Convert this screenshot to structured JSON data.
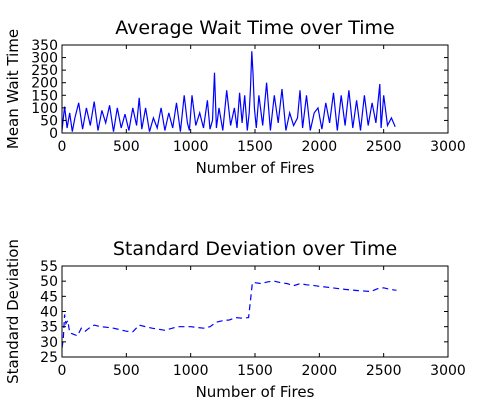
{
  "colors": {
    "series": "#0000ff",
    "axis": "#000000",
    "background": "#ffffff"
  },
  "chart_data": [
    {
      "type": "line",
      "title": "Average Wait Time over Time",
      "xlabel": "Number of Fires",
      "ylabel": "Mean Wait Time",
      "xlim": [
        0,
        3000
      ],
      "ylim": [
        0,
        350
      ],
      "xticks": [
        0,
        500,
        1000,
        1500,
        2000,
        2500,
        3000
      ],
      "yticks": [
        0,
        50,
        100,
        150,
        200,
        250,
        300,
        350
      ],
      "grid": false,
      "line_style": "solid",
      "series": [
        {
          "x": [
            0,
            20,
            40,
            60,
            80,
            100,
            130,
            160,
            190,
            220,
            250,
            280,
            310,
            340,
            370,
            400,
            430,
            460,
            490,
            520,
            550,
            580,
            600,
            620,
            650,
            680,
            710,
            740,
            770,
            800,
            830,
            860,
            890,
            920,
            950,
            975,
            990,
            1010,
            1040,
            1070,
            1100,
            1130,
            1150,
            1170,
            1185,
            1200,
            1220,
            1250,
            1280,
            1310,
            1340,
            1360,
            1380,
            1400,
            1420,
            1440,
            1455,
            1465,
            1475,
            1485,
            1495,
            1510,
            1530,
            1560,
            1590,
            1620,
            1650,
            1680,
            1710,
            1740,
            1770,
            1800,
            1830,
            1850,
            1870,
            1900,
            1930,
            1960,
            1990,
            2020,
            2050,
            2080,
            2110,
            2140,
            2170,
            2200,
            2230,
            2260,
            2290,
            2320,
            2350,
            2380,
            2410,
            2440,
            2470,
            2480,
            2500,
            2530,
            2560,
            2590
          ],
          "y": [
            10,
            105,
            20,
            80,
            5,
            60,
            120,
            15,
            100,
            30,
            125,
            10,
            90,
            40,
            110,
            5,
            100,
            20,
            75,
            10,
            100,
            30,
            140,
            15,
            100,
            5,
            60,
            20,
            100,
            10,
            80,
            20,
            120,
            5,
            150,
            40,
            10,
            150,
            30,
            80,
            20,
            130,
            15,
            50,
            240,
            20,
            100,
            10,
            170,
            30,
            100,
            20,
            160,
            40,
            150,
            10,
            80,
            180,
            325,
            230,
            100,
            20,
            150,
            30,
            200,
            10,
            150,
            40,
            175,
            10,
            80,
            30,
            60,
            170,
            20,
            150,
            10,
            80,
            100,
            15,
            120,
            40,
            160,
            10,
            150,
            30,
            170,
            20,
            130,
            10,
            150,
            30,
            120,
            40,
            195,
            20,
            150,
            30,
            60,
            25
          ]
        }
      ]
    },
    {
      "type": "line",
      "title": "Standard Deviation over Time",
      "xlabel": "Number of Fires",
      "ylabel": "Standard Deviation",
      "xlim": [
        0,
        3000
      ],
      "ylim": [
        25,
        55
      ],
      "xticks": [
        0,
        500,
        1000,
        1500,
        2000,
        2500,
        3000
      ],
      "yticks": [
        25,
        30,
        35,
        40,
        45,
        50,
        55
      ],
      "grid": false,
      "line_style": "dashed",
      "series": [
        {
          "x": [
            0,
            10,
            20,
            30,
            45,
            60,
            90,
            120,
            150,
            180,
            210,
            250,
            300,
            350,
            400,
            450,
            500,
            550,
            600,
            650,
            700,
            800,
            900,
            1000,
            1100,
            1150,
            1200,
            1250,
            1300,
            1350,
            1400,
            1450,
            1480,
            1500,
            1550,
            1600,
            1650,
            1700,
            1750,
            1800,
            1850,
            1900,
            1950,
            2000,
            2100,
            2200,
            2300,
            2400,
            2450,
            2500,
            2550,
            2600
          ],
          "y": [
            28,
            31,
            39,
            36,
            37,
            33,
            32.5,
            32,
            34.5,
            33.5,
            34.5,
            35.5,
            35,
            34.8,
            34.5,
            34,
            33.5,
            33.3,
            35.5,
            35,
            34.5,
            33.8,
            35,
            35,
            34.5,
            35,
            36.5,
            37,
            37.2,
            38,
            37.8,
            38,
            49.5,
            49.5,
            49.2,
            49.8,
            50,
            49.5,
            49.2,
            48.5,
            49.2,
            48.8,
            48.6,
            48.3,
            47.8,
            47.3,
            46.9,
            46.6,
            47.5,
            47.8,
            47.3,
            47
          ]
        }
      ]
    }
  ]
}
